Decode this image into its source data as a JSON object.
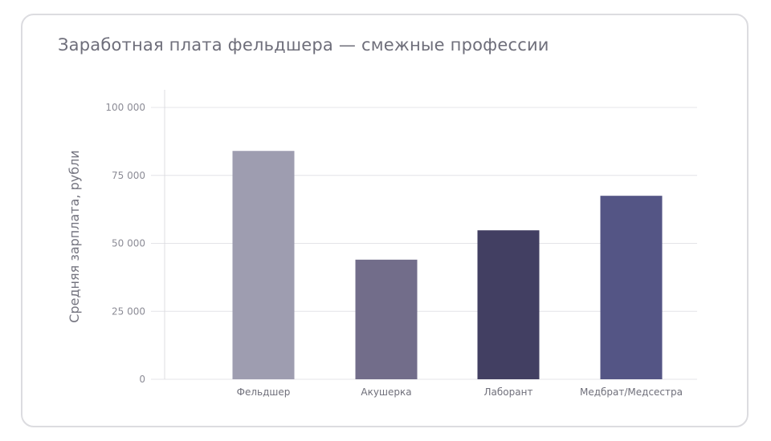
{
  "chart_data": {
    "type": "bar",
    "title": "Заработная плата фельдшера — смежные профессии",
    "ylabel": "Средняя зарплата, рубли",
    "xlabel": "",
    "categories": [
      "Фельдшер",
      "Акушерка",
      "Лаборант",
      "Медбрат/Медсестра"
    ],
    "values": [
      84000,
      44000,
      54800,
      67500
    ],
    "colors": [
      "#9e9db0",
      "#726d8a",
      "#423f62",
      "#545585"
    ],
    "ylim": [
      0,
      100000
    ],
    "yticks": [
      0,
      25000,
      50000,
      75000,
      100000
    ],
    "ytick_labels": [
      "0",
      "25 000",
      "50 000",
      "75 000",
      "100 000"
    ],
    "grid": true,
    "legend": "none"
  }
}
